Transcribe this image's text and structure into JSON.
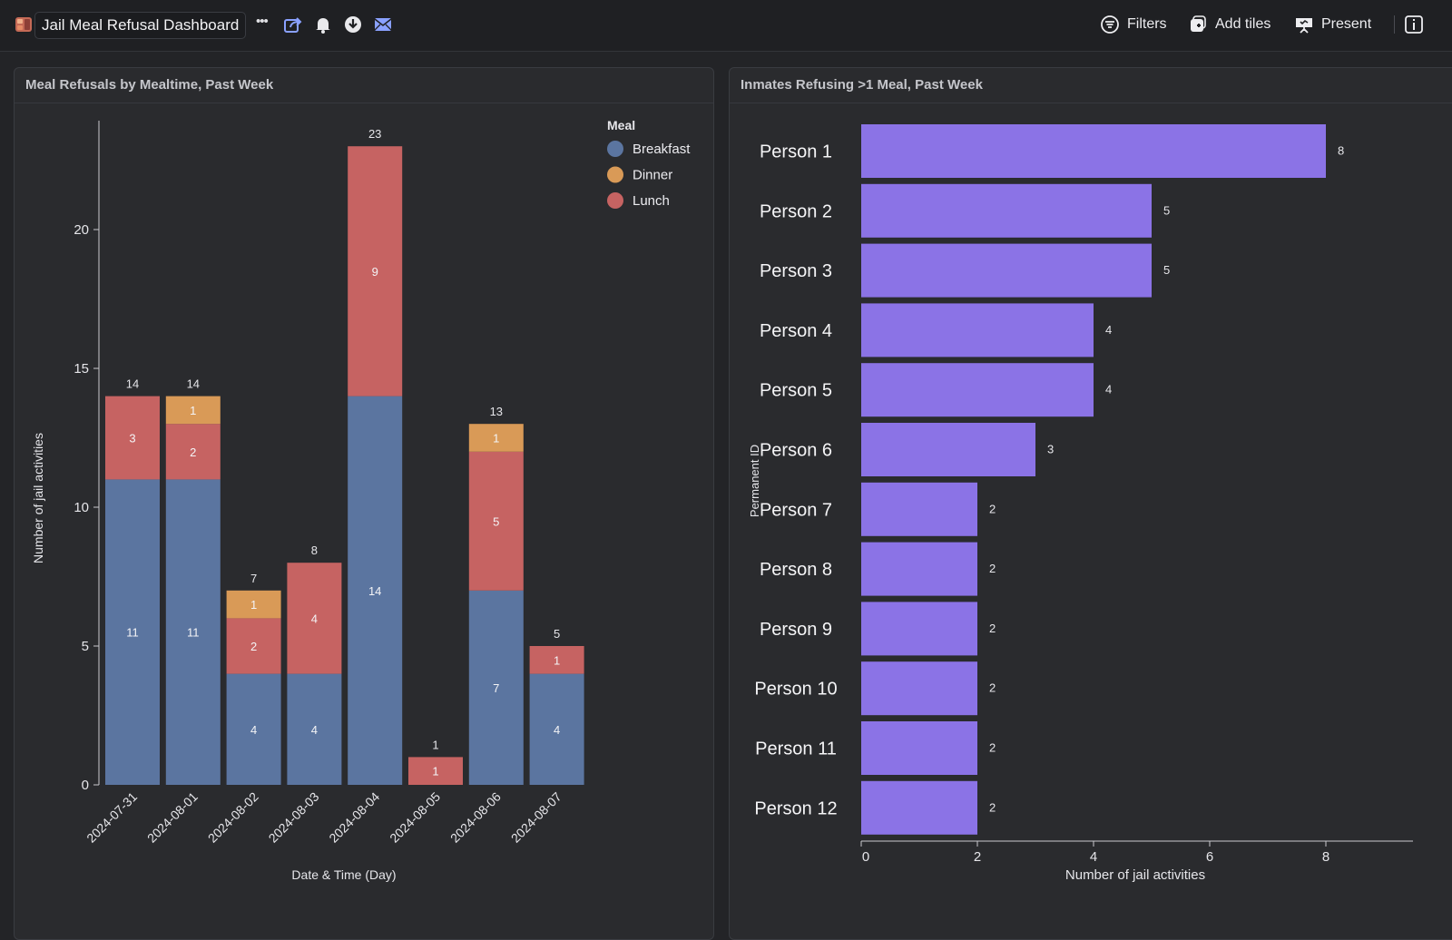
{
  "app": {
    "title": "Jail Meal Refusal Dashboard",
    "more_label": "•••",
    "actions": {
      "filters": "Filters",
      "add_tiles": "Add tiles",
      "present": "Present"
    }
  },
  "panels": [
    {
      "title": "Meal Refusals by Mealtime, Past Week"
    },
    {
      "title": "Inmates Refusing >1 Meal, Past Week"
    }
  ],
  "chart_data": [
    {
      "type": "bar",
      "stacked": true,
      "categories": [
        "2024-07-31",
        "2024-08-01",
        "2024-08-02",
        "2024-08-03",
        "2024-08-04",
        "2024-08-05",
        "2024-08-06",
        "2024-08-07"
      ],
      "series": [
        {
          "name": "Breakfast",
          "color": "#5b75a0",
          "values": [
            11,
            11,
            4,
            4,
            14,
            0,
            7,
            4
          ]
        },
        {
          "name": "Lunch",
          "color": "#c66362",
          "values": [
            3,
            2,
            2,
            4,
            9,
            1,
            5,
            1
          ]
        },
        {
          "name": "Dinner",
          "color": "#d99a57",
          "values": [
            0,
            1,
            1,
            0,
            0,
            0,
            1,
            0
          ]
        }
      ],
      "legend_order": [
        "Breakfast",
        "Dinner",
        "Lunch"
      ],
      "totals": [
        14,
        14,
        7,
        8,
        23,
        1,
        13,
        5
      ],
      "legend_title": "Meal",
      "legend_position": "top-right",
      "xlabel": "Date & Time (Day)",
      "ylabel": "Number of jail activities",
      "ylim": [
        0,
        24
      ],
      "yticks": [
        0,
        5,
        10,
        15,
        20
      ],
      "grid": false
    },
    {
      "type": "bar",
      "orientation": "horizontal",
      "categories": [
        "Person 1",
        "Person 2",
        "Person 3",
        "Person 4",
        "Person 5",
        "Person 6",
        "Person 7",
        "Person 8",
        "Person 9",
        "Person 10",
        "Person 11",
        "Person 12"
      ],
      "values": [
        8,
        5,
        5,
        4,
        4,
        3,
        2,
        2,
        2,
        2,
        2,
        2
      ],
      "color": "#8b73e6",
      "xlabel": "Number of jail activities",
      "ylabel": "Permanent ID",
      "xlim": [
        0,
        9.5
      ],
      "xticks": [
        0,
        2,
        4,
        6,
        8
      ],
      "grid": false
    }
  ]
}
